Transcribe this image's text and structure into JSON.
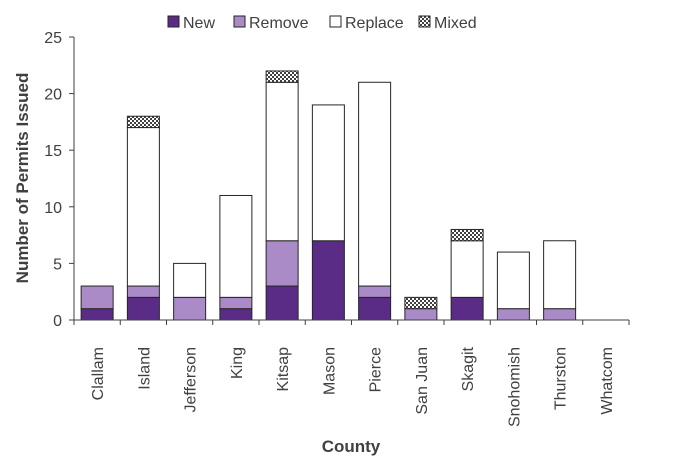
{
  "chart_data": {
    "type": "bar",
    "stacked": true,
    "title": "",
    "xlabel": "County",
    "ylabel": "Number of Permits Issued",
    "ylim": [
      0,
      25
    ],
    "yticks": [
      0,
      5,
      10,
      15,
      20,
      25
    ],
    "grid": false,
    "legend_position": "top",
    "categories": [
      "Clallam",
      "Island",
      "Jefferson",
      "King",
      "Kitsap",
      "Mason",
      "Pierce",
      "San Juan",
      "Skagit",
      "Snohomish",
      "Thurston",
      "Whatcom"
    ],
    "series": [
      {
        "name": "New",
        "color": "#5b2c86",
        "fill": "solid",
        "values": [
          1,
          2,
          0,
          1,
          3,
          7,
          2,
          0,
          2,
          0,
          0,
          0
        ]
      },
      {
        "name": "Remove",
        "color": "#ab8ac8",
        "fill": "solid",
        "values": [
          2,
          1,
          2,
          1,
          4,
          0,
          1,
          1,
          0,
          1,
          1,
          0
        ]
      },
      {
        "name": "Replace",
        "color": "#ffffff",
        "fill": "solid",
        "values": [
          0,
          14,
          3,
          9,
          14,
          12,
          18,
          0,
          5,
          5,
          6,
          0
        ]
      },
      {
        "name": "Mixed",
        "color": "#b0b0b0",
        "fill": "checker",
        "values": [
          0,
          1,
          0,
          0,
          1,
          0,
          0,
          1,
          1,
          0,
          0,
          0
        ]
      }
    ]
  }
}
